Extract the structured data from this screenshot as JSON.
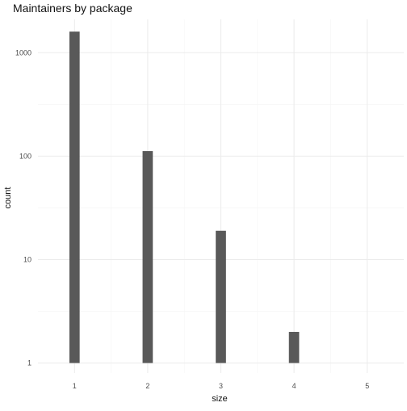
{
  "chart_data": {
    "type": "bar",
    "title": "Maintainers by package",
    "xlabel": "size",
    "ylabel": "count",
    "x": [
      1,
      2,
      3,
      4
    ],
    "values": [
      1600,
      112,
      19,
      2
    ],
    "x_ticks": [
      1,
      2,
      3,
      4,
      5
    ],
    "y_ticks": [
      1,
      10,
      100,
      1000
    ],
    "y_scale": "log10",
    "xlim": [
      0.5,
      5.5
    ],
    "ylim": [
      0.8,
      2100
    ],
    "grid": true,
    "bar_color": "#595959",
    "theme": "minimal"
  }
}
